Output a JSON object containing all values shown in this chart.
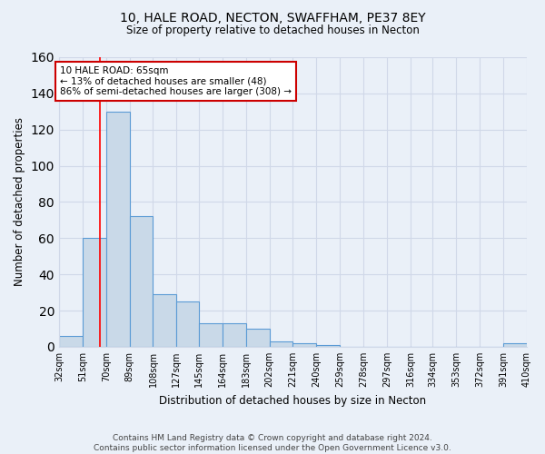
{
  "title1": "10, HALE ROAD, NECTON, SWAFFHAM, PE37 8EY",
  "title2": "Size of property relative to detached houses in Necton",
  "xlabel": "Distribution of detached houses by size in Necton",
  "ylabel": "Number of detached properties",
  "bar_values": [
    6,
    60,
    130,
    72,
    29,
    25,
    13,
    13,
    10,
    3,
    2,
    1,
    0,
    0,
    0,
    0,
    0,
    0,
    0,
    2
  ],
  "bin_labels": [
    "32sqm",
    "51sqm",
    "70sqm",
    "89sqm",
    "108sqm",
    "127sqm",
    "145sqm",
    "164sqm",
    "183sqm",
    "202sqm",
    "221sqm",
    "240sqm",
    "259sqm",
    "278sqm",
    "297sqm",
    "316sqm",
    "334sqm",
    "353sqm",
    "372sqm",
    "391sqm",
    "410sqm"
  ],
  "bin_edges": [
    32,
    51,
    70,
    89,
    108,
    127,
    145,
    164,
    183,
    202,
    221,
    240,
    259,
    278,
    297,
    316,
    334,
    353,
    372,
    391,
    410
  ],
  "bar_color": "#c9d9e8",
  "bar_edge_color": "#5b9bd5",
  "property_size": 65,
  "red_line_x": 65,
  "annotation_text": "10 HALE ROAD: 65sqm\n← 13% of detached houses are smaller (48)\n86% of semi-detached houses are larger (308) →",
  "annotation_box_color": "#ffffff",
  "annotation_box_edge": "#cc0000",
  "ylim": [
    0,
    160
  ],
  "yticks": [
    0,
    20,
    40,
    60,
    80,
    100,
    120,
    140,
    160
  ],
  "grid_color": "#d0d8e8",
  "bg_color": "#eaf0f8",
  "footnote": "Contains HM Land Registry data © Crown copyright and database right 2024.\nContains public sector information licensed under the Open Government Licence v3.0."
}
